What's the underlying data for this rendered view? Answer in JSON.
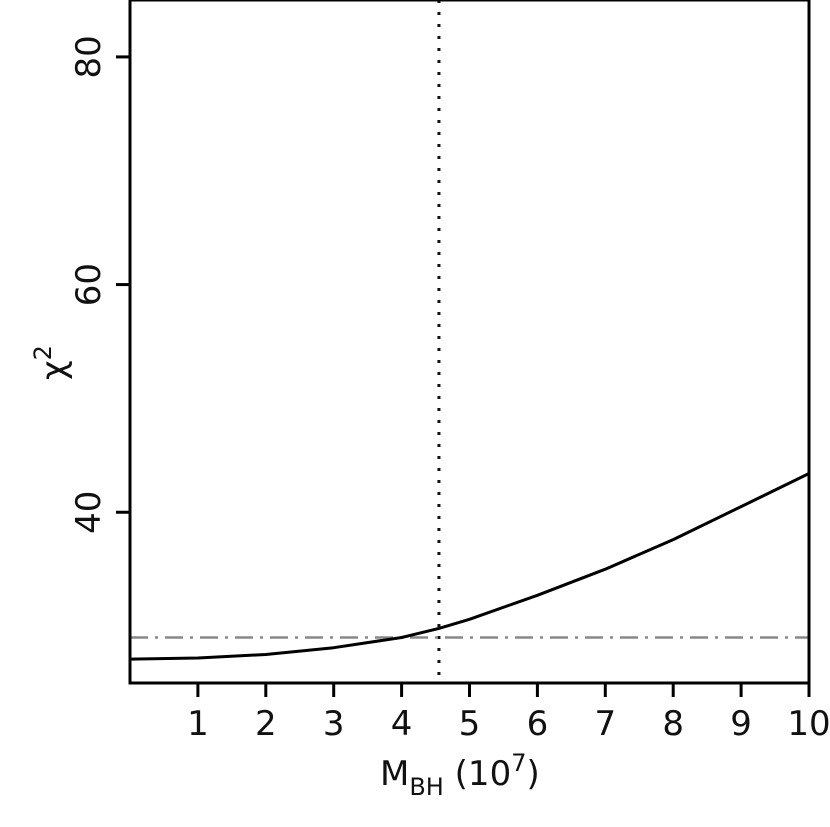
{
  "chart_data": {
    "type": "line",
    "xlim": [
      0,
      10
    ],
    "ylim": [
      25,
      85
    ],
    "x_ticks": [
      1,
      2,
      3,
      4,
      5,
      6,
      7,
      8,
      9,
      10
    ],
    "x_tick_labels": [
      "1",
      "2",
      "3",
      "4",
      "5",
      "6",
      "7",
      "8",
      "9",
      "10"
    ],
    "y_ticks": [
      40,
      60,
      80
    ],
    "y_tick_labels": [
      "40",
      "60",
      "80"
    ],
    "xlabel": {
      "main": "M",
      "sub": "BH",
      "rest": " (10",
      "sup": "7",
      "close": ")"
    },
    "ylabel": {
      "main": "χ",
      "sup": "2"
    },
    "grid": false,
    "series": [
      {
        "style": "solid",
        "x": [
          0,
          1,
          2,
          3,
          4,
          4.55,
          5,
          6,
          7,
          8,
          9,
          10
        ],
        "y": [
          27.1,
          27.2,
          27.5,
          28.1,
          29.0,
          29.8,
          30.6,
          32.7,
          35.0,
          37.6,
          40.5,
          43.4
        ]
      }
    ],
    "reference_lines": [
      {
        "orientation": "vertical",
        "value": 4.55,
        "style": "dotted"
      },
      {
        "orientation": "horizontal",
        "value": 29.0,
        "style": "dash-dot",
        "color": "#888888"
      }
    ]
  }
}
